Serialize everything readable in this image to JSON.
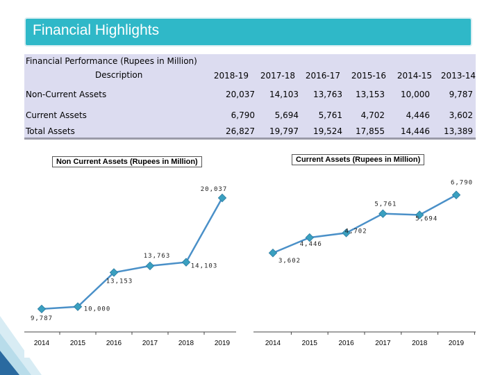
{
  "page_title": "Financial Highlights",
  "table": {
    "heading": "Financial Performance (Rupees in Million)",
    "description_header": "Description",
    "years": [
      "2018-19",
      "2017-18",
      "2016-17",
      "2015-16",
      "2014-15",
      "2013-14"
    ],
    "rows": [
      {
        "label": "Non-Current Assets",
        "values": [
          "20,037",
          "14,103",
          "13,763",
          "13,153",
          "10,000",
          "9,787"
        ]
      },
      {
        "label": "Current Assets",
        "values": [
          "6,790",
          "5,694",
          "5,761",
          "4,702",
          "4,446",
          "3,602"
        ]
      },
      {
        "label": "Total Assets",
        "values": [
          "26,827",
          "19,797",
          "19,524",
          "17,855",
          "14,446",
          "13,389"
        ]
      }
    ]
  },
  "colors": {
    "title_bar": "#2fb8c8",
    "line": "#4a90c8",
    "marker": "#3aa0c0",
    "table_bg": "#dcdcf0"
  },
  "chart_data": [
    {
      "type": "line",
      "title": "Non Current Assets (Rupees in Million)",
      "categories": [
        "2014",
        "2015",
        "2016",
        "2017",
        "2018",
        "2019"
      ],
      "values": [
        9787,
        10000,
        13153,
        13763,
        14103,
        20037
      ],
      "labels": [
        "9,787",
        "10,000",
        "13,153",
        "13,763",
        "14,103",
        "20,037"
      ],
      "ylim": [
        8500,
        21000
      ]
    },
    {
      "type": "line",
      "title": "Current Assets (Rupees in Million)",
      "categories": [
        "2014",
        "2015",
        "2016",
        "2017",
        "2018",
        "2019"
      ],
      "values": [
        3602,
        4446,
        4702,
        5761,
        5694,
        6790
      ],
      "labels": [
        "3,602",
        "4,446",
        "4,702",
        "5,761",
        "5,694",
        "6,790"
      ],
      "ylim": [
        3000,
        7200
      ]
    }
  ]
}
